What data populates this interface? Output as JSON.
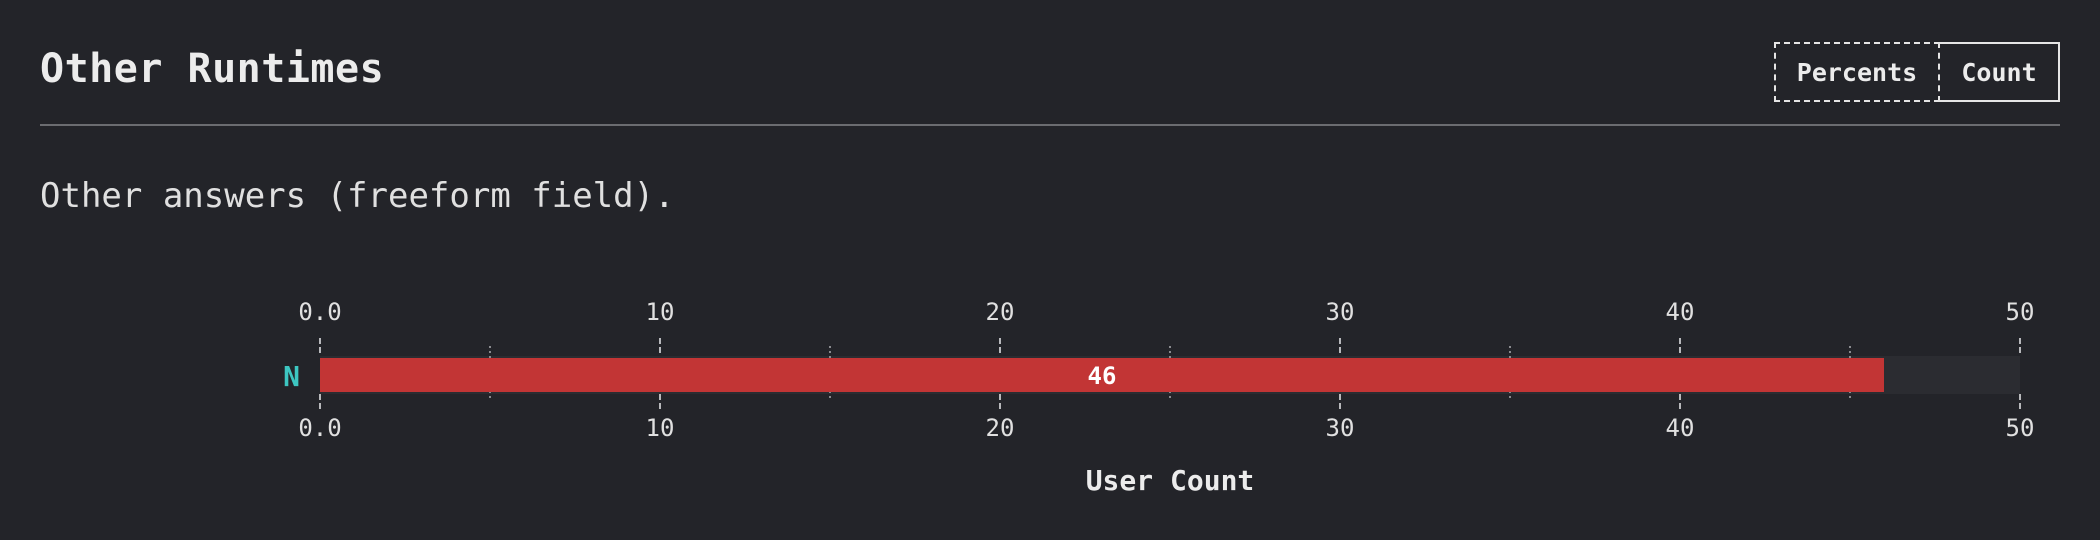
{
  "header": {
    "title": "Other Runtimes",
    "toggle": {
      "percents_label": "Percents",
      "count_label": "Count",
      "active": "Count"
    }
  },
  "description": "Other answers (freeform field).",
  "colors": {
    "bar": "#c23535",
    "track": "#2b2c31",
    "category": "#3dc6c1"
  },
  "chart_data": {
    "type": "bar",
    "orientation": "horizontal",
    "categories": [
      "N"
    ],
    "values": [
      46
    ],
    "data_labels": [
      "46"
    ],
    "xlabel": "User Count",
    "xlim": [
      0,
      50
    ],
    "major_ticks": [
      0,
      10,
      20,
      30,
      40,
      50
    ],
    "tick_labels": [
      "0.0",
      "10",
      "20",
      "30",
      "40",
      "50"
    ],
    "minor_ticks": [
      5,
      15,
      25,
      35,
      45
    ],
    "track_max": 50,
    "axis_labels_top_and_bottom": true
  }
}
